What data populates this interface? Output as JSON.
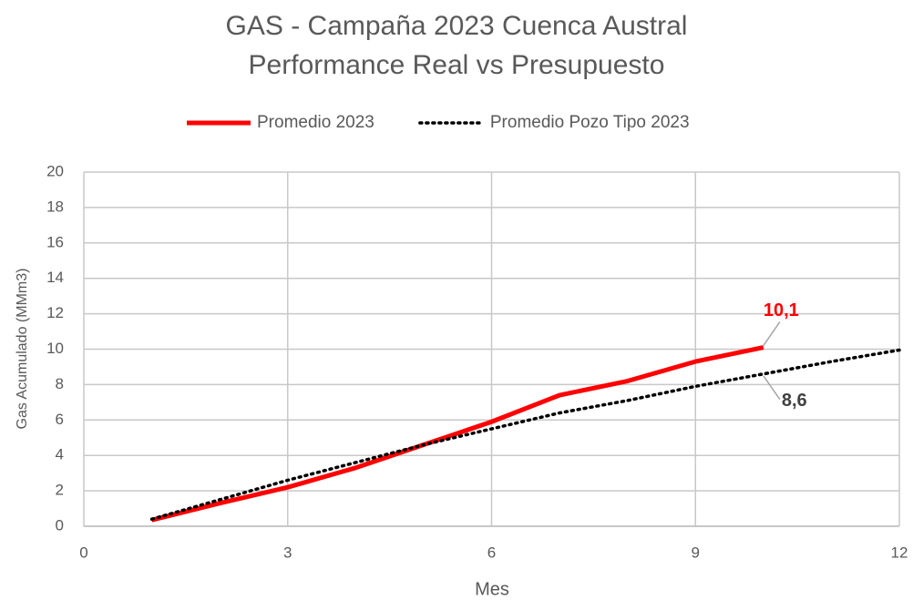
{
  "chart_data": {
    "type": "line",
    "title": "GAS - Campaña 2023 Cuenca Austral",
    "subtitle": "Performance Real vs Presupuesto",
    "x_label": "Mes",
    "y_label": "Gas Acumulado (MMm3)",
    "xlim": [
      0,
      12
    ],
    "xticks": [
      0,
      3,
      6,
      9,
      12
    ],
    "ylim": [
      0,
      20
    ],
    "yticks": [
      0,
      2,
      4,
      6,
      8,
      10,
      12,
      14,
      16,
      18,
      20
    ],
    "grid": true,
    "legend": "top",
    "series": [
      {
        "name": "Promedio 2023",
        "color": "#ff0000",
        "style": "solid",
        "x": [
          1,
          2,
          3,
          4,
          5,
          6,
          7,
          8,
          9,
          10
        ],
        "values": [
          0.35,
          1.3,
          2.2,
          3.3,
          4.6,
          5.9,
          7.4,
          8.2,
          9.3,
          10.1
        ],
        "value_labels": [
          null,
          null,
          null,
          null,
          null,
          null,
          null,
          null,
          null,
          "10,1"
        ]
      },
      {
        "name": "Promedio Pozo Tipo 2023",
        "color": "#000000",
        "style": "dotted",
        "x": [
          1,
          2,
          3,
          4,
          5,
          6,
          7,
          8,
          9,
          10,
          11,
          12
        ],
        "values": [
          0.4,
          1.5,
          2.6,
          3.6,
          4.6,
          5.5,
          6.4,
          7.1,
          7.9,
          8.6,
          9.3,
          9.95
        ],
        "value_labels": [
          null,
          null,
          null,
          null,
          null,
          null,
          null,
          null,
          null,
          "8,6",
          null,
          null
        ]
      }
    ]
  }
}
